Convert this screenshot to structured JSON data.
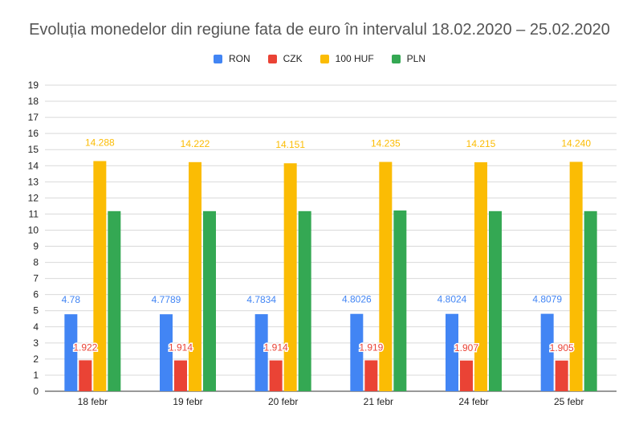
{
  "chart_data": {
    "type": "bar",
    "title": "Evoluția monedelor din regiune fata de euro în intervalul 18.02.2020 – 25.02.2020",
    "xlabel": "",
    "ylabel": "",
    "ylim": [
      0,
      19
    ],
    "yticks": [
      0,
      1,
      2,
      3,
      4,
      5,
      6,
      7,
      8,
      9,
      10,
      11,
      12,
      13,
      14,
      15,
      16,
      17,
      18,
      19
    ],
    "grid": true,
    "legend_position": "top",
    "categories": [
      "18 febr",
      "19 febr",
      "20 febr",
      "21 febr",
      "24 febr",
      "25 febr"
    ],
    "series": [
      {
        "name": "RON",
        "color": "#4285f4",
        "values": [
          4.78,
          4.7789,
          4.7834,
          4.8026,
          4.8024,
          4.8079
        ],
        "labels": [
          "4.78",
          "4.7789",
          "4.7834",
          "4.8026",
          "4.8024",
          "4.8079"
        ]
      },
      {
        "name": "CZK",
        "color": "#ea4335",
        "values": [
          1.922,
          1.914,
          1.914,
          1.919,
          1.907,
          1.905
        ],
        "labels": [
          "1.922",
          "1.914",
          "1.914",
          "1.919",
          "1.907",
          "1.905"
        ]
      },
      {
        "name": "100 HUF",
        "color": "#fbbc04",
        "values": [
          14.288,
          14.222,
          14.151,
          14.235,
          14.215,
          14.24
        ],
        "labels": [
          "14.288",
          "14.222",
          "14.151",
          "14.235",
          "14.215",
          "14.240"
        ]
      },
      {
        "name": "PLN",
        "color": "#34a853",
        "values": [
          11.18,
          11.18,
          11.18,
          11.22,
          11.18,
          11.18
        ],
        "labels": []
      }
    ]
  }
}
